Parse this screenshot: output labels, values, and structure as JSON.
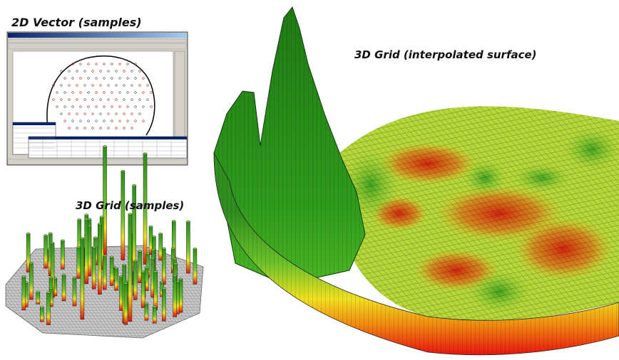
{
  "labels": {
    "vector_samples": "2D Vector (samples)",
    "grid_samples": "3D Grid (samples)",
    "grid_surface": "3D Grid (interpolated surface)"
  }
}
